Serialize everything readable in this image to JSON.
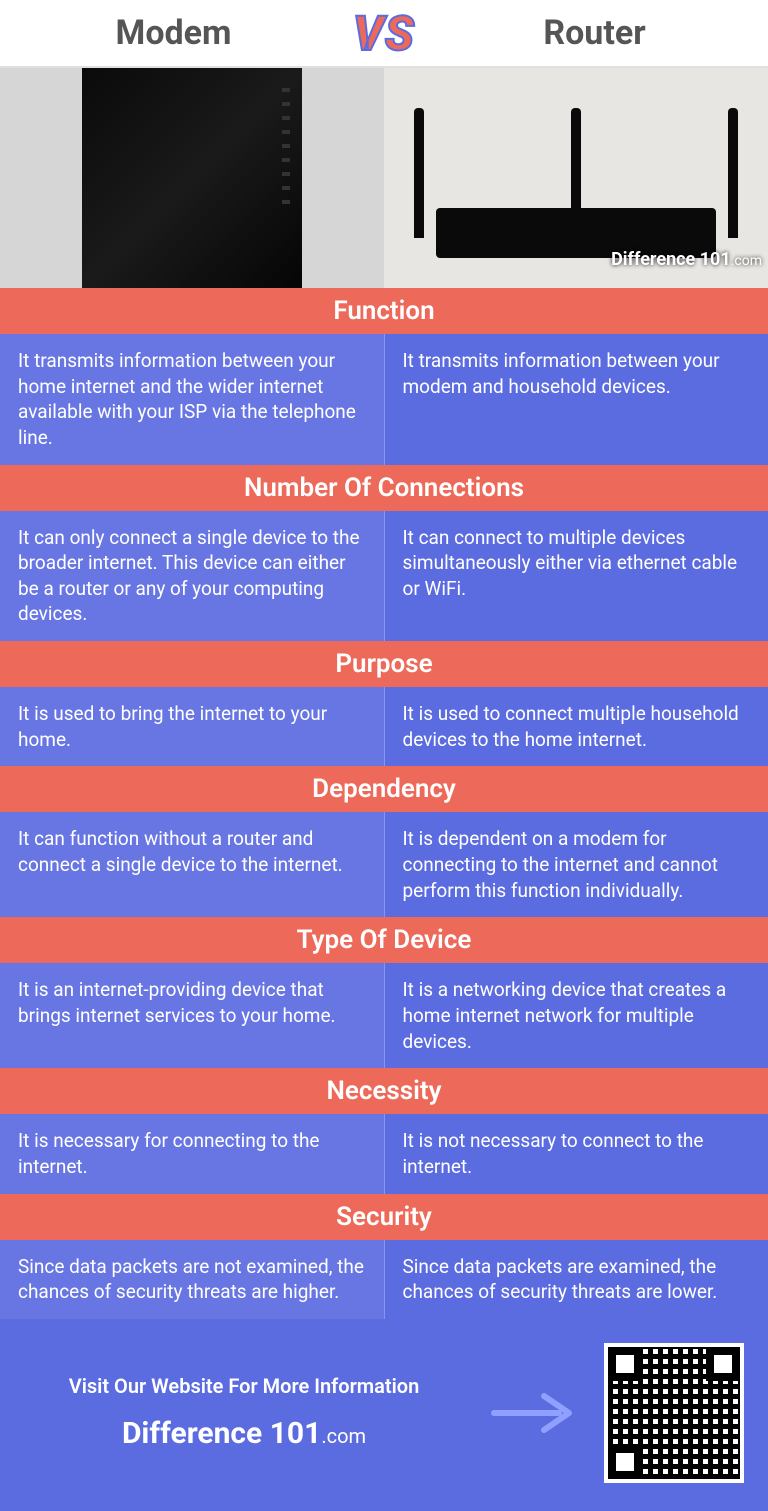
{
  "header": {
    "left_label": "Modem",
    "right_label": "Router",
    "vs_text": "VS"
  },
  "watermark": {
    "brand": "Difference 101",
    "suffix": ".com"
  },
  "colors": {
    "category_bg": "#ed6a5a",
    "row_bg_left": "#6876e4",
    "row_bg_right": "#5b6be0",
    "text_white": "#ffffff",
    "header_text": "#555555"
  },
  "categories": [
    {
      "title": "Function",
      "left": "It transmits information between your home internet and the wider internet available with your ISP via the telephone line.",
      "right": "It transmits information between your modem and household devices."
    },
    {
      "title": "Number Of Connections",
      "left": "It can only connect a single device to the broader internet. This device can either be a router or any of your computing devices.",
      "right": "It can connect to multiple devices simultaneously either via ethernet cable or WiFi."
    },
    {
      "title": "Purpose",
      "left": "It is used to bring the internet to your home.",
      "right": "It is used to connect multiple household devices to the home internet."
    },
    {
      "title": "Dependency",
      "left": "It can function without a router and connect a single device to the internet.",
      "right": "It is dependent on a modem for connecting to the internet and cannot perform this function individually."
    },
    {
      "title": "Type Of Device",
      "left": "It is an internet-providing device that brings internet services to your home.",
      "right": "It is a networking device that creates a home internet network for multiple devices."
    },
    {
      "title": "Necessity",
      "left": "It is necessary for connecting to the internet.",
      "right": "It is not necessary to connect to the internet."
    },
    {
      "title": "Security",
      "left": "Since data packets are not examined, the chances of security threats are higher.",
      "right": "Since data packets are examined, the chances of security threats are lower."
    }
  ],
  "footer": {
    "cta": "Visit Our Website For More Information",
    "brand": "Difference 101",
    "brand_suffix": ".com"
  }
}
